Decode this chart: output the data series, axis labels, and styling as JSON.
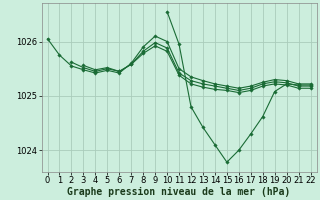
{
  "background_color": "#cceedd",
  "grid_color": "#aaccbb",
  "line_color": "#1a6b35",
  "marker_color": "#1a6b35",
  "xlabel": "Graphe pression niveau de la mer (hPa)",
  "xlabel_fontsize": 7,
  "tick_fontsize": 6,
  "ylim": [
    1023.6,
    1026.7
  ],
  "xlim": [
    -0.5,
    22.5
  ],
  "yticks": [
    1024,
    1025,
    1026
  ],
  "xticks": [
    0,
    1,
    2,
    3,
    4,
    5,
    6,
    7,
    8,
    9,
    10,
    11,
    12,
    13,
    14,
    15,
    16,
    17,
    18,
    19,
    20,
    21,
    22
  ],
  "series": [
    [
      1026.05,
      1025.75,
      1025.55,
      1025.48,
      1025.42,
      1025.47,
      1025.42,
      1025.6,
      1025.9,
      1026.1,
      1026.0,
      1025.5,
      1025.35,
      1025.28,
      1025.22,
      1025.18,
      1025.14,
      1025.18,
      1025.25,
      1025.3,
      1025.28,
      1025.22,
      1025.22
    ],
    [
      null,
      null,
      1025.62,
      1025.52,
      1025.45,
      1025.5,
      1025.45,
      1025.58,
      1025.82,
      1025.98,
      1025.88,
      1025.42,
      1025.28,
      1025.22,
      1025.18,
      1025.14,
      1025.1,
      1025.14,
      1025.22,
      1025.26,
      1025.24,
      1025.18,
      1025.18
    ],
    [
      null,
      null,
      null,
      1025.56,
      1025.48,
      1025.52,
      1025.45,
      1025.58,
      1025.78,
      1025.92,
      1025.82,
      1025.38,
      1025.22,
      1025.16,
      1025.12,
      1025.1,
      1025.06,
      1025.1,
      1025.18,
      1025.22,
      1025.2,
      1025.14,
      1025.14
    ],
    [
      null,
      null,
      null,
      null,
      null,
      null,
      null,
      null,
      null,
      null,
      1026.55,
      1025.95,
      1024.8,
      1024.42,
      1024.1,
      1023.78,
      1024.0,
      1024.3,
      1024.62,
      1025.08,
      1025.22,
      1025.2,
      1025.2
    ]
  ]
}
